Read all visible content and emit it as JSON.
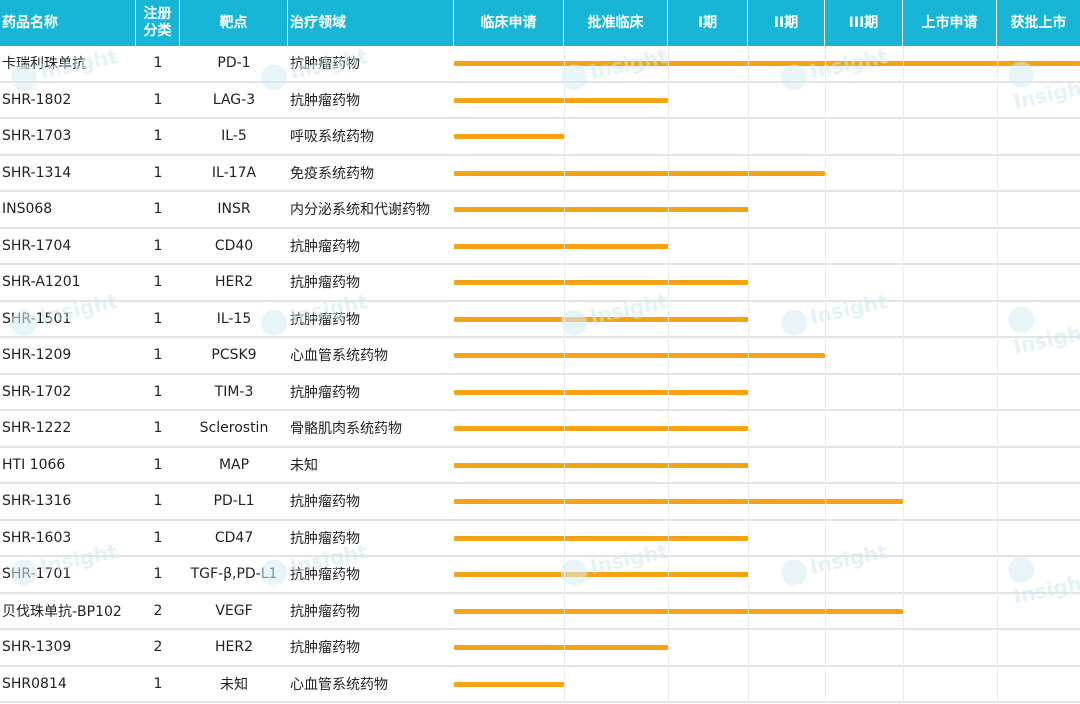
{
  "header": {
    "drug_name": "药品名称",
    "reg_class": "注册分类",
    "target": "靶点",
    "therapy_area": "治疗领域",
    "phases": [
      "临床申请",
      "批准临床",
      "I期",
      "II期",
      "III期",
      "上市申请",
      "获批上市"
    ]
  },
  "watermark": "Insight",
  "colors": {
    "header_bg": "#17b6d6",
    "bar": "#f5a214",
    "row_border": "#e3e3e3"
  },
  "chart_data": {
    "type": "table",
    "columns": [
      "药品名称",
      "注册分类",
      "靶点",
      "治疗领域"
    ],
    "phase_axis": [
      "临床申请",
      "批准临床",
      "I期",
      "II期",
      "III期",
      "上市申请",
      "获批上市"
    ],
    "rows": [
      {
        "name": "卡瑞利珠单抗",
        "class": "1",
        "target": "PD-1",
        "area": "抗肿瘤药物",
        "progress": 7.0
      },
      {
        "name": "SHR-1802",
        "class": "1",
        "target": "LAG-3",
        "area": "抗肿瘤药物",
        "progress": 2.0
      },
      {
        "name": "SHR-1703",
        "class": "1",
        "target": "IL-5",
        "area": "呼吸系统药物",
        "progress": 1.0
      },
      {
        "name": "SHR-1314",
        "class": "1",
        "target": "IL-17A",
        "area": "免疫系统药物",
        "progress": 4.0
      },
      {
        "name": "INS068",
        "class": "1",
        "target": "INSR",
        "area": "内分泌系统和代谢药物",
        "progress": 3.0
      },
      {
        "name": "SHR-1704",
        "class": "1",
        "target": "CD40",
        "area": "抗肿瘤药物",
        "progress": 2.0
      },
      {
        "name": "SHR-A1201",
        "class": "1",
        "target": "HER2",
        "area": "抗肿瘤药物",
        "progress": 3.0
      },
      {
        "name": "SHR-1501",
        "class": "1",
        "target": "IL-15",
        "area": "抗肿瘤药物",
        "progress": 3.0
      },
      {
        "name": "SHR-1209",
        "class": "1",
        "target": "PCSK9",
        "area": "心血管系统药物",
        "progress": 4.0
      },
      {
        "name": "SHR-1702",
        "class": "1",
        "target": "TIM-3",
        "area": "抗肿瘤药物",
        "progress": 3.0
      },
      {
        "name": "SHR-1222",
        "class": "1",
        "target": "Sclerostin",
        "area": "骨骼肌肉系统药物",
        "progress": 3.0
      },
      {
        "name": "HTI 1066",
        "class": "1",
        "target": "MAP",
        "area": "未知",
        "progress": 3.0
      },
      {
        "name": "SHR-1316",
        "class": "1",
        "target": "PD-L1",
        "area": "抗肿瘤药物",
        "progress": 5.0
      },
      {
        "name": "SHR-1603",
        "class": "1",
        "target": "CD47",
        "area": "抗肿瘤药物",
        "progress": 3.0
      },
      {
        "name": "SHR-1701",
        "class": "1",
        "target": "TGF-β,PD-L1",
        "area": "抗肿瘤药物",
        "progress": 3.0
      },
      {
        "name": "贝伐珠单抗-BP102",
        "class": "2",
        "target": "VEGF",
        "area": "抗肿瘤药物",
        "progress": 5.0
      },
      {
        "name": "SHR-1309",
        "class": "2",
        "target": "HER2",
        "area": "抗肿瘤药物",
        "progress": 2.0
      },
      {
        "name": "SHR0814",
        "class": "1",
        "target": "未知",
        "area": "心血管系统药物",
        "progress": 1.0
      }
    ]
  }
}
